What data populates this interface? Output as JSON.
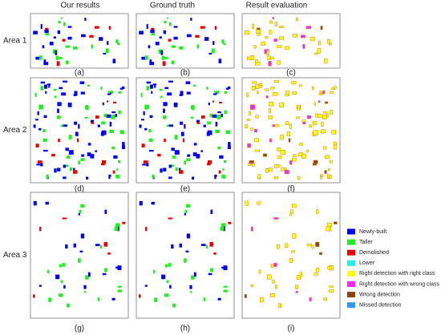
{
  "columns": [
    "Our results",
    "Ground truth",
    "Result evaluation"
  ],
  "rows": [
    "Area 1",
    "Area 2",
    "Area 3"
  ],
  "panels": [
    "(a)",
    "(b)",
    "(c)",
    "(d)",
    "(e)",
    "(f)",
    "(g)",
    "(h)",
    "(i)"
  ],
  "legend": [
    {
      "label": "Newly-built",
      "color": "#0000ff"
    },
    {
      "label": "Taller",
      "color": "#22ee22"
    },
    {
      "label": "Demolished",
      "color": "#ee0000"
    },
    {
      "label": "Lower",
      "color": "#22eeee"
    },
    {
      "label": "Right detection with right class",
      "color": "#ffff00"
    },
    {
      "label": "Right detection with wrong class",
      "color": "#ff22ff"
    },
    {
      "label": "Wrong detection",
      "color": "#8b4513"
    },
    {
      "label": "Missed detection",
      "color": "#3399ee"
    }
  ]
}
